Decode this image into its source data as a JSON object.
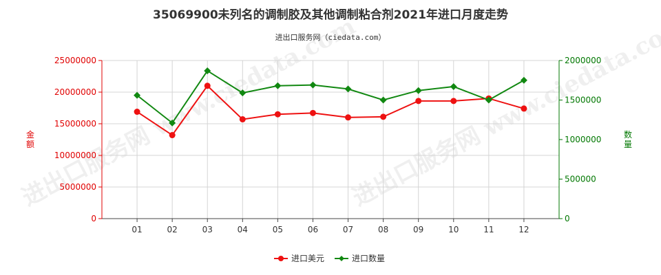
{
  "chart_data": {
    "type": "line",
    "title": "35069900未列名的调制胶及其他调制粘合剂2021年进口月度走势",
    "subtitle": "进出口服务网（ciedata.com）",
    "watermark": "进出口服务网 www.ciedata.com",
    "categories": [
      "01",
      "02",
      "03",
      "04",
      "05",
      "06",
      "07",
      "08",
      "09",
      "10",
      "11",
      "12"
    ],
    "y_left": {
      "label": "金额",
      "range": [
        0,
        25000000
      ],
      "ticks": [
        "0",
        "5000000",
        "10000000",
        "15000000",
        "20000000",
        "25000000"
      ],
      "color": "#e00000"
    },
    "y_right": {
      "label": "数量",
      "range": [
        0,
        2000000
      ],
      "ticks": [
        "0",
        "500000",
        "1000000",
        "1500000",
        "2000000"
      ],
      "color": "#007700"
    },
    "series": [
      {
        "name": "进口美元",
        "axis": "left",
        "color": "#ee1111",
        "values": [
          16900000,
          13200000,
          21000000,
          15700000,
          16500000,
          16700000,
          16000000,
          16100000,
          18600000,
          18600000,
          19000000,
          17400000
        ]
      },
      {
        "name": "进口数量",
        "axis": "right",
        "color": "#118811",
        "values": [
          1560000,
          1210000,
          1870000,
          1590000,
          1680000,
          1690000,
          1640000,
          1500000,
          1620000,
          1670000,
          1500000,
          1750000
        ]
      }
    ],
    "grid": true,
    "legend_position": "bottom"
  }
}
